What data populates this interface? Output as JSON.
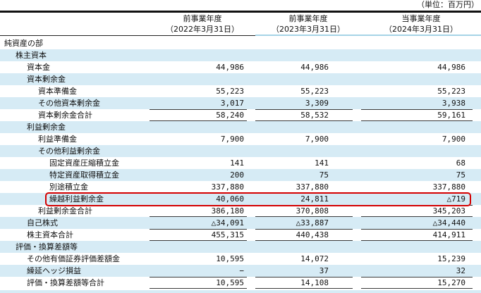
{
  "unit_label": "（単位：百万円）",
  "columns": [
    {
      "line1": "前事業年度",
      "line2": "（2022年3月31日）"
    },
    {
      "line1": "前事業年度",
      "line2": "（2023年3月31日）"
    },
    {
      "line1": "当事業年度",
      "line2": "（2024年3月31日）"
    }
  ],
  "rows": [
    {
      "label": "純資産の部",
      "indent": 0,
      "values": [
        "",
        "",
        ""
      ],
      "shaded": false,
      "total": false,
      "highlighted": false
    },
    {
      "label": "株主資本",
      "indent": 1,
      "values": [
        "",
        "",
        ""
      ],
      "shaded": true,
      "total": false,
      "highlighted": false
    },
    {
      "label": "資本金",
      "indent": 2,
      "values": [
        "44,986",
        "44,986",
        "44,986"
      ],
      "shaded": false,
      "total": false,
      "highlighted": false
    },
    {
      "label": "資本剰余金",
      "indent": 2,
      "values": [
        "",
        "",
        ""
      ],
      "shaded": true,
      "total": false,
      "highlighted": false
    },
    {
      "label": "資本準備金",
      "indent": 3,
      "values": [
        "55,223",
        "55,223",
        "55,223"
      ],
      "shaded": false,
      "total": false,
      "highlighted": false
    },
    {
      "label": "その他資本剰余金",
      "indent": 3,
      "values": [
        "3,017",
        "3,309",
        "3,938"
      ],
      "shaded": true,
      "total": false,
      "highlighted": false
    },
    {
      "label": "資本剰余金合計",
      "indent": 3,
      "values": [
        "58,240",
        "58,532",
        "59,161"
      ],
      "shaded": false,
      "total": true,
      "highlighted": false
    },
    {
      "label": "利益剰余金",
      "indent": 2,
      "values": [
        "",
        "",
        ""
      ],
      "shaded": true,
      "total": false,
      "highlighted": false
    },
    {
      "label": "利益準備金",
      "indent": 3,
      "values": [
        "7,900",
        "7,900",
        "7,900"
      ],
      "shaded": false,
      "total": false,
      "highlighted": false
    },
    {
      "label": "その他利益剰余金",
      "indent": 3,
      "values": [
        "",
        "",
        ""
      ],
      "shaded": true,
      "total": false,
      "highlighted": false
    },
    {
      "label": "固定資産圧縮積立金",
      "indent": 4,
      "values": [
        "141",
        "141",
        "68"
      ],
      "shaded": false,
      "total": false,
      "highlighted": false
    },
    {
      "label": "特定資産取得積立金",
      "indent": 4,
      "values": [
        "200",
        "75",
        "75"
      ],
      "shaded": true,
      "total": false,
      "highlighted": false
    },
    {
      "label": "別途積立金",
      "indent": 4,
      "values": [
        "337,880",
        "337,880",
        "337,880"
      ],
      "shaded": false,
      "total": false,
      "highlighted": false
    },
    {
      "label": "繰越利益剰余金",
      "indent": 4,
      "values": [
        "40,060",
        "24,811",
        "△719"
      ],
      "shaded": true,
      "total": false,
      "highlighted": true
    },
    {
      "label": "利益剰余金合計",
      "indent": 3,
      "values": [
        "386,180",
        "370,808",
        "345,203"
      ],
      "shaded": false,
      "total": true,
      "highlighted": false
    },
    {
      "label": "自己株式",
      "indent": 2,
      "values": [
        "△34,091",
        "△33,887",
        "△34,440"
      ],
      "shaded": true,
      "total": false,
      "highlighted": false
    },
    {
      "label": "株主資本合計",
      "indent": 2,
      "values": [
        "455,315",
        "440,438",
        "414,911"
      ],
      "shaded": false,
      "total": true,
      "highlighted": false
    },
    {
      "label": "評価・換算差額等",
      "indent": 1,
      "values": [
        "",
        "",
        ""
      ],
      "shaded": true,
      "total": false,
      "highlighted": false
    },
    {
      "label": "その他有価証券評価差額金",
      "indent": 2,
      "values": [
        "10,595",
        "14,072",
        "15,239"
      ],
      "shaded": false,
      "total": false,
      "highlighted": false
    },
    {
      "label": "繰延ヘッジ損益",
      "indent": 2,
      "values": [
        "−",
        "37",
        "32"
      ],
      "shaded": true,
      "total": false,
      "highlighted": false
    },
    {
      "label": "評価・換算差額等合計",
      "indent": 2,
      "values": [
        "10,595",
        "14,108",
        "15,270"
      ],
      "shaded": false,
      "total": true,
      "highlighted": false
    }
  ],
  "colors": {
    "row_shade": "#d6ebf5",
    "highlight_border": "#d40000",
    "header_underline_blue": "#a6d4e6",
    "rule_black": "#111111"
  }
}
